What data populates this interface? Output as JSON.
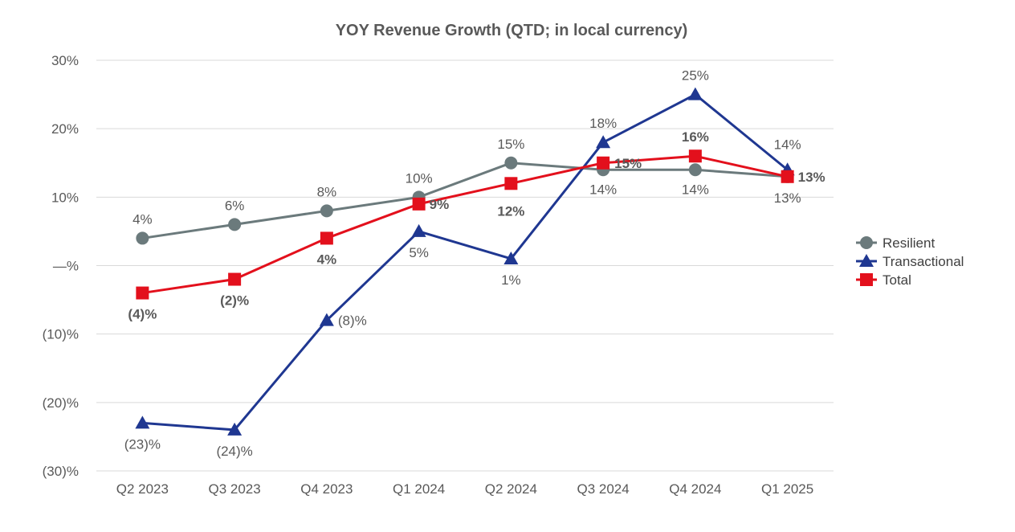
{
  "chart_data": {
    "type": "line",
    "title": "YOY Revenue Growth (QTD; in local currency)",
    "xlabel": "",
    "ylabel": "",
    "categories": [
      "Q2 2023",
      "Q3 2023",
      "Q4 2023",
      "Q1 2024",
      "Q2 2024",
      "Q3 2024",
      "Q4 2024",
      "Q1 2025"
    ],
    "ylim": [
      -30,
      30
    ],
    "yticks": [
      30,
      20,
      10,
      0,
      -10,
      -20,
      -30
    ],
    "ytick_labels": [
      "30%",
      "20%",
      "10%",
      "—%",
      "(10)%",
      "(20)%",
      "(30)%"
    ],
    "grid": true,
    "legend_position": "right",
    "series": [
      {
        "name": "Resilient",
        "color": "#6b7a7c",
        "marker": "circle",
        "values": [
          4,
          6,
          8,
          10,
          15,
          14,
          14,
          13
        ],
        "labels": [
          "4%",
          "6%",
          "8%",
          "10%",
          "15%",
          "14%",
          "14%",
          "13%"
        ]
      },
      {
        "name": "Transactional",
        "color": "#1f3791",
        "marker": "triangle",
        "values": [
          -23,
          -24,
          -8,
          5,
          1,
          18,
          25,
          14
        ],
        "labels": [
          "(23)%",
          "(24)%",
          "(8)%",
          "5%",
          "1%",
          "18%",
          "25%",
          "14%"
        ]
      },
      {
        "name": "Total",
        "color": "#e3101c",
        "marker": "square",
        "values": [
          -4,
          -2,
          4,
          9,
          12,
          15,
          16,
          13
        ],
        "labels": [
          "(4)%",
          "(2)%",
          "4%",
          "9%",
          "12%",
          "15%",
          "16%",
          "13%"
        ]
      }
    ]
  }
}
